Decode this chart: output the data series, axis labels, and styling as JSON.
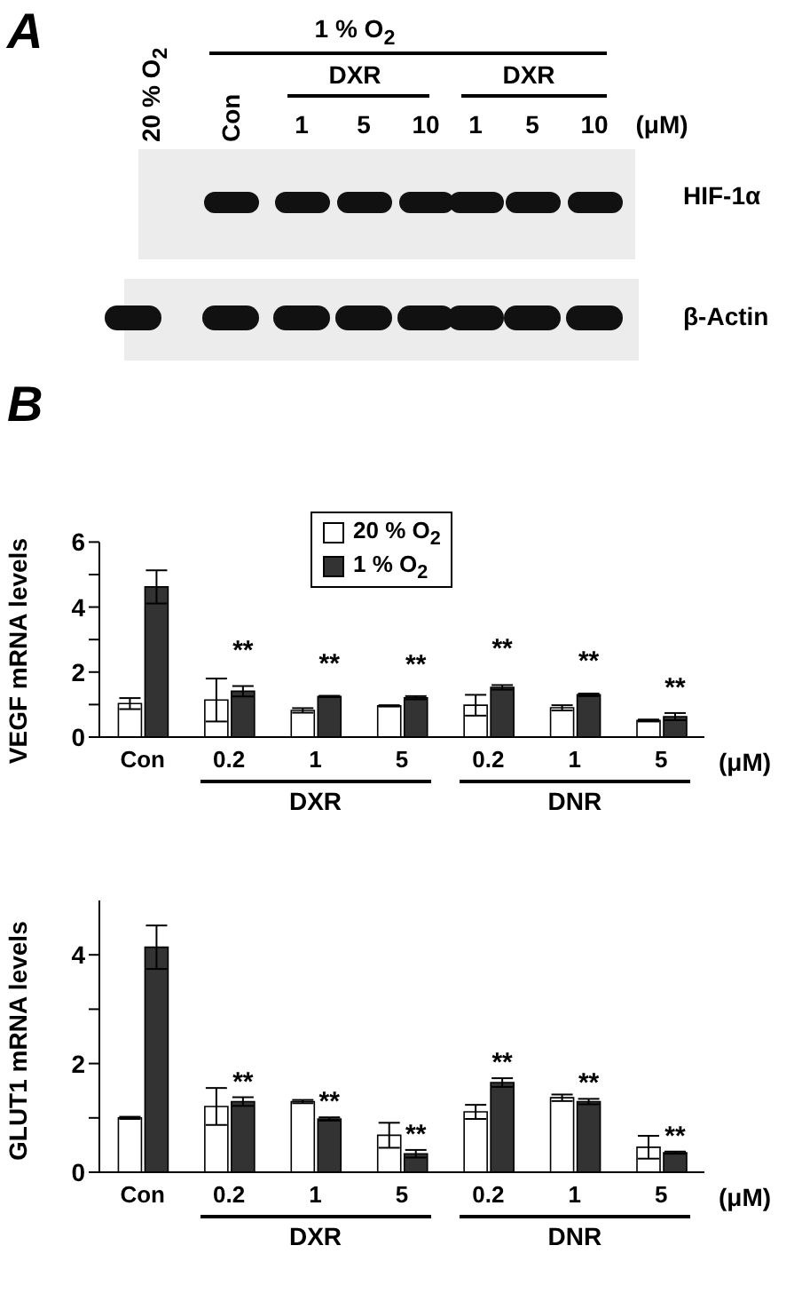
{
  "chart_data": [
    {
      "type": "other",
      "title": "A",
      "annotations": [
        "20 % O$_{2}$",
        "1 % O$_{2}$",
        "Con",
        "DXR",
        "1",
        "5",
        "10",
        "DXR",
        "1",
        "5",
        "10",
        "(μM)",
        "HIF-1α",
        "β-Actin"
      ]
    },
    {
      "type": "bar",
      "title": "B",
      "ylabel": "VEGF mRNA levels",
      "categories": [
        "Con",
        "0.2",
        "1",
        "5",
        "0.2",
        "1",
        "5"
      ],
      "ylim": [
        0,
        6
      ],
      "yticks": [
        0,
        {
          "value": 1,
          "label": null
        },
        2,
        {
          "value": 3,
          "label": null
        },
        4,
        {
          "value": 5,
          "label": null
        },
        6
      ],
      "legend": "top",
      "annotations": [
        "(μM)",
        "DXR",
        "DNR"
      ],
      "series": [
        {
          "name": "20 % O$_{2}$",
          "color": "#ffffff",
          "values": [
            1.03,
            1.14,
            0.82,
            0.96,
            0.98,
            0.9,
            0.51
          ],
          "errors": [
            0.17,
            0.66,
            0.07,
            0.02,
            0.32,
            0.08,
            0.03
          ]
        },
        {
          "name": "1 % O$_{2}$",
          "color": "#333333",
          "values": [
            4.62,
            1.41,
            1.25,
            1.21,
            1.53,
            1.3,
            0.63
          ],
          "errors": [
            0.51,
            0.16,
            0.02,
            0.05,
            0.07,
            0.04,
            0.11
          ],
          "value_labels": [
            null,
            "**",
            "**",
            "**",
            "**",
            "**",
            "**"
          ]
        }
      ]
    },
    {
      "type": "bar",
      "ylabel": "GLUT1 mRNA levels",
      "categories": [
        "Con",
        "0.2",
        "1",
        "5",
        "0.2",
        "1",
        "5"
      ],
      "ylim": [
        0,
        5
      ],
      "yticks": [
        0,
        {
          "value": 1,
          "label": null
        },
        2,
        {
          "value": 3,
          "label": null
        },
        4
      ],
      "annotations": [
        "(μM)",
        "DXR",
        "DNR"
      ],
      "series": [
        {
          "color": "#ffffff",
          "values": [
            1.0,
            1.21,
            1.3,
            0.68,
            1.11,
            1.37,
            0.46
          ],
          "errors": [
            0.02,
            0.34,
            0.03,
            0.23,
            0.13,
            0.06,
            0.21
          ]
        },
        {
          "color": "#333333",
          "values": [
            4.14,
            1.3,
            0.98,
            0.34,
            1.65,
            1.3,
            0.36
          ],
          "errors": [
            0.4,
            0.08,
            0.03,
            0.07,
            0.08,
            0.05,
            0.02
          ],
          "value_labels": [
            null,
            "**",
            "**",
            "**",
            "**",
            "**",
            "**"
          ]
        }
      ]
    }
  ]
}
